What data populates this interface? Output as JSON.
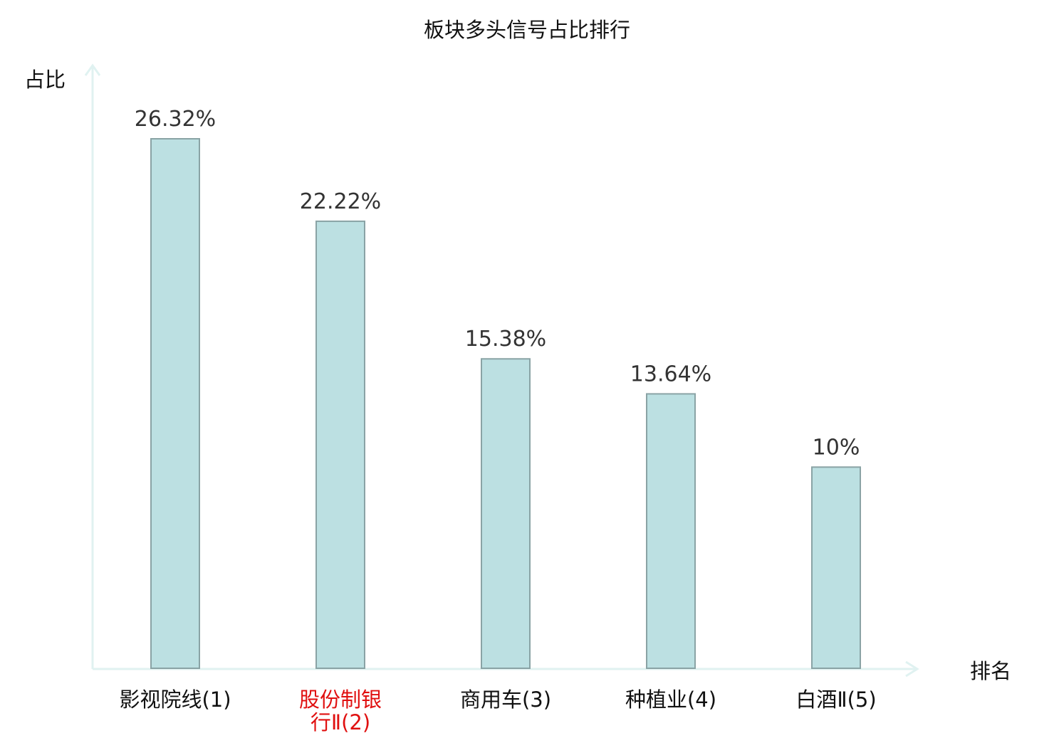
{
  "chart_data": {
    "type": "bar",
    "title": "板块多头信号占比排行",
    "ylabel": "占比",
    "xlabel": "排名",
    "categories": [
      [
        "影视院线(1)"
      ],
      [
        "股份制银",
        "行Ⅱ(2)"
      ],
      [
        "商用车(3)"
      ],
      [
        "种植业(4)"
      ],
      [
        "白酒Ⅱ(5)"
      ]
    ],
    "values": [
      26.32,
      22.22,
      15.38,
      13.64,
      10
    ],
    "value_labels": [
      "26.32%",
      "22.22%",
      "15.38%",
      "13.64%",
      "10%"
    ],
    "highlighted_index": 1,
    "ylim": [
      0,
      26.32
    ],
    "grid": false,
    "legend": "none"
  },
  "colors": {
    "bar_fill": "#bce0e2",
    "bar_stroke": "#8aa3a5",
    "axis": "#e0f2f1",
    "text": "#333333",
    "category_text": "#111111",
    "highlight_text": "#e01010"
  }
}
